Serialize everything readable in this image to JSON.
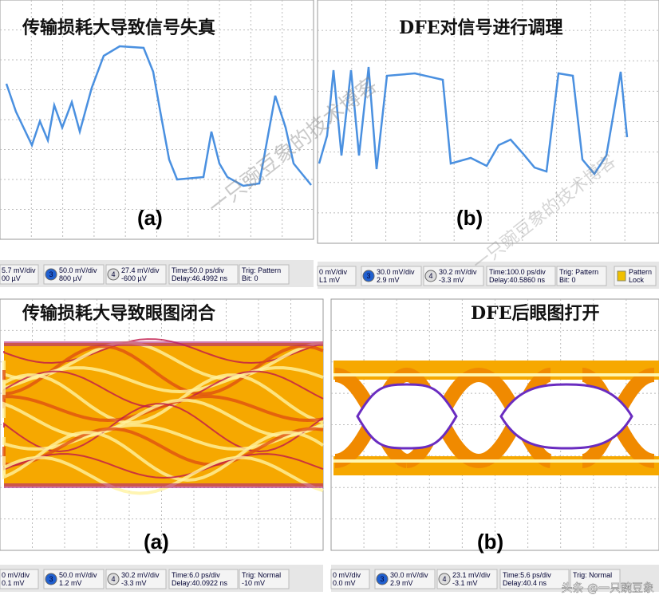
{
  "panels": [
    {
      "title": "传输损耗大导致信号失真",
      "label": "(a)",
      "status": {
        "channels": [
          {
            "scale": "5.7 mV/div",
            "offset": "00 µV"
          },
          {
            "number": "3",
            "scale": "50.0 mV/div",
            "offset": "800 µV"
          },
          {
            "number": "4",
            "scale": "27.4 mV/div",
            "offset": "-600 µV"
          }
        ],
        "time": "Time:50.0 ps/div",
        "delay": "Delay:46.4992 ns",
        "trig": "Trig: Pattern",
        "trig2": "Bit: 0"
      }
    },
    {
      "title": "DFE对信号进行调理",
      "label": "(b)",
      "status": {
        "channels": [
          {
            "scale": "0 mV/div",
            "offset": "L1 mV"
          },
          {
            "number": "3",
            "scale": "30.0 mV/div",
            "offset": "2.9 mV"
          },
          {
            "number": "4",
            "scale": "30.2 mV/div",
            "offset": "-3.3 mV"
          }
        ],
        "time": "Time:100.0 ps/div",
        "delay": "Delay:40.5860 ns",
        "trig": "Trig: Pattern",
        "trig2": "Bit: 0",
        "lock": [
          "Pattern",
          "Lock"
        ]
      }
    },
    {
      "title": "传输损耗大导致眼图闭合",
      "label": "(a)",
      "status": {
        "channels": [
          {
            "scale": "0 mV/div",
            "offset": "0.1 mV"
          },
          {
            "number": "3",
            "scale": "50.0 mV/div",
            "offset": "1.2 mV"
          },
          {
            "number": "4",
            "scale": "30.2 mV/div",
            "offset": "-3.3 mV"
          }
        ],
        "time": "Time:6.0 ps/div",
        "delay": "Delay:40.0922 ns",
        "trig": "Trig: Normal",
        "trig2": "-10 mV"
      }
    },
    {
      "title": "DFE后眼图打开",
      "label": "(b)",
      "status": {
        "channels": [
          {
            "scale": "0 mV/div",
            "offset": "0.0 mV"
          },
          {
            "number": "3",
            "scale": "30.0 mV/div",
            "offset": "2.9 mV"
          },
          {
            "number": "4",
            "scale": "23.1 mV/div",
            "offset": "-3.1 mV"
          }
        ],
        "time": "Time:5.6 ps/div",
        "delay": "Delay:40.4 ns",
        "trig": "Trig: Normal",
        "trig2": ""
      }
    }
  ],
  "watermark": "一只豌豆象的技术博客",
  "footer": "头条 @一只豌豆象"
}
